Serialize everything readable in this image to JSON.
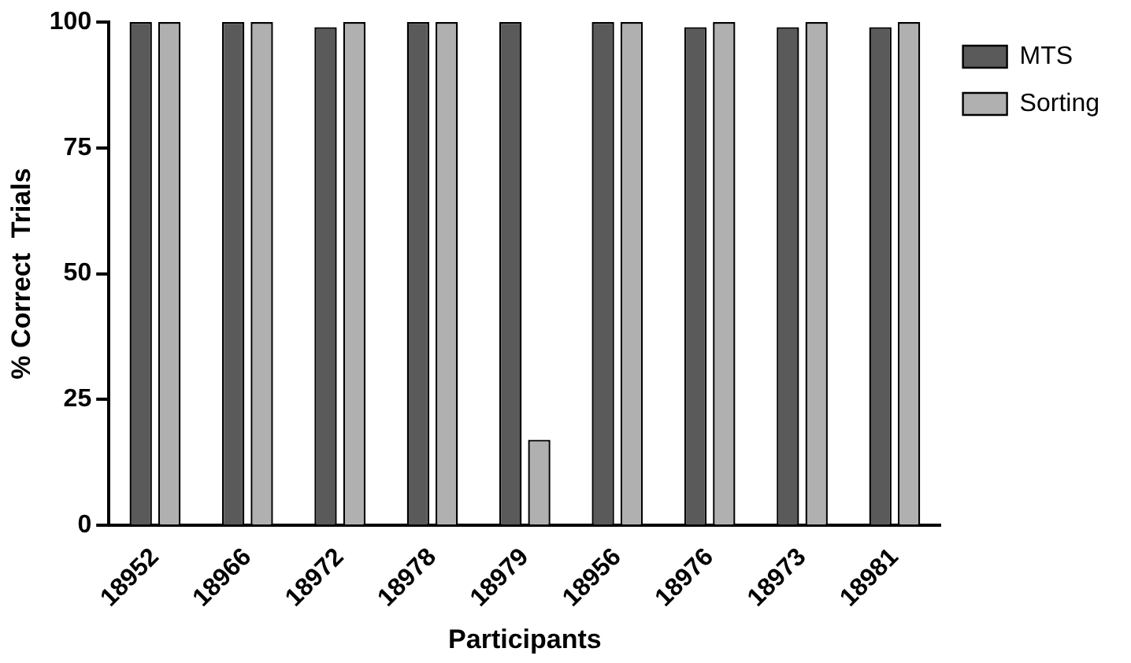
{
  "chart_data": {
    "type": "bar",
    "xlabel": "Participants",
    "ylabel": "% Correct  Trials",
    "categories": [
      "18952",
      "18966",
      "18972",
      "18978",
      "18979",
      "18956",
      "18976",
      "18973",
      "18981"
    ],
    "series": [
      {
        "name": "MTS",
        "color": "#5a5a5a",
        "values": [
          100,
          100,
          99,
          100,
          100,
          100,
          99,
          99,
          99
        ]
      },
      {
        "name": "Sorting",
        "color": "#b0b0b0",
        "values": [
          100,
          100,
          100,
          100,
          17,
          100,
          100,
          100,
          100
        ]
      }
    ],
    "ylim": [
      0,
      100
    ],
    "yticks": [
      0,
      25,
      50,
      75,
      100
    ],
    "grid": false,
    "legend": "top right"
  }
}
